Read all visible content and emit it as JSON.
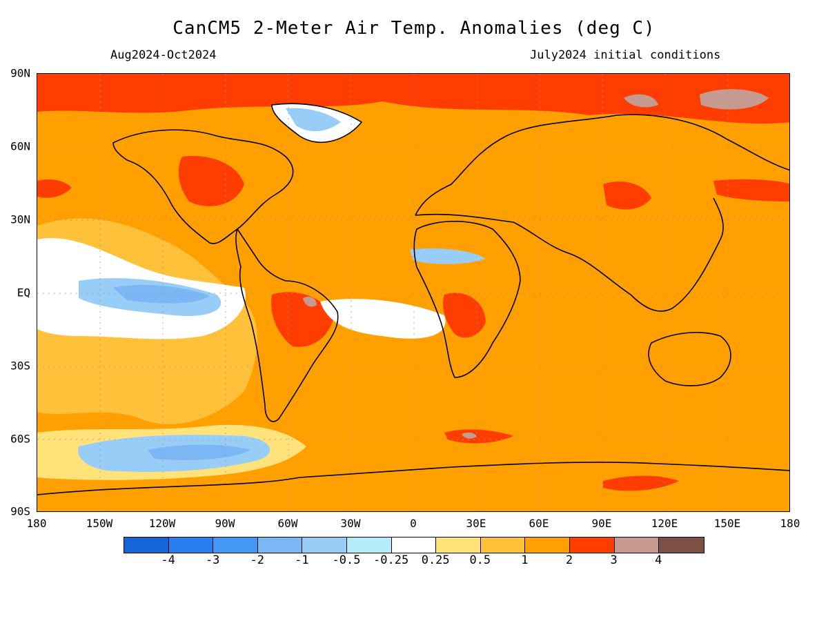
{
  "title": "CanCM5 2-Meter Air Temp. Anomalies (deg C)",
  "period": "Aug2024-Oct2024",
  "initial_conditions": "July2024 initial conditions",
  "lat_labels": [
    "90N",
    "60N",
    "30N",
    "EQ",
    "30S",
    "60S",
    "90S"
  ],
  "lon_labels": [
    "180",
    "150W",
    "120W",
    "90W",
    "60W",
    "30W",
    "0",
    "30E",
    "60E",
    "90E",
    "120E",
    "150E",
    "180"
  ],
  "legend": {
    "colors": [
      "#1565d8",
      "#2a7ff0",
      "#4499f6",
      "#7cb6f5",
      "#98cdf7",
      "#b4edf8",
      "#ffffff",
      "#ffe37a",
      "#ffc139",
      "#ff9f00",
      "#ff3d00",
      "#c79a8f",
      "#7a5142"
    ],
    "tick_labels": [
      "-4",
      "-3",
      "-2",
      "-1",
      "-0.5",
      "-0.25",
      "0.25",
      "0.5",
      "1",
      "2",
      "3",
      "4"
    ]
  }
}
